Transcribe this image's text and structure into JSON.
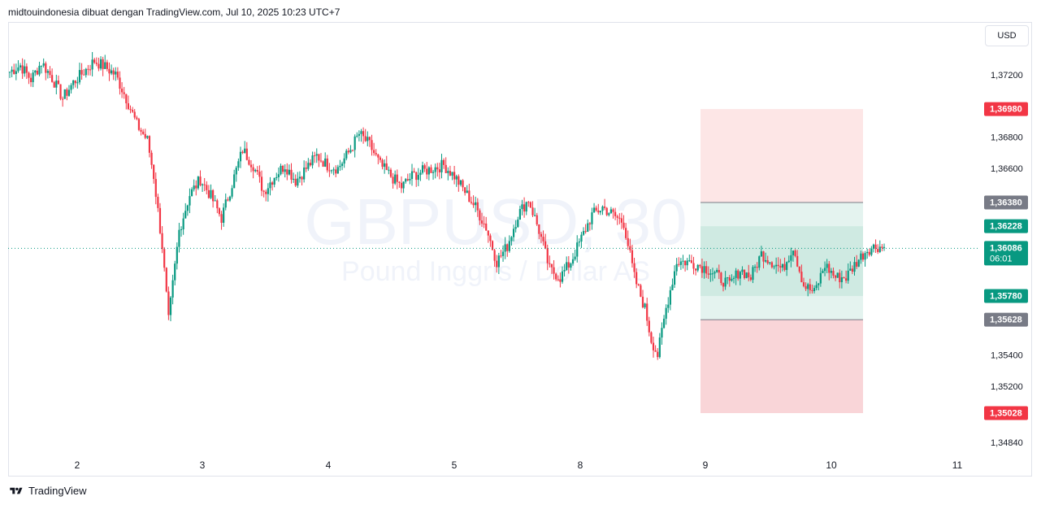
{
  "header": {
    "attribution": "midtouindonesia dibuat dengan TradingView.com, Jul 10, 2025 10:23 UTC+7"
  },
  "currency_button": "USD",
  "footer": {
    "brand": "TradingView"
  },
  "watermark": {
    "symbol": "GBPUSD, 30",
    "description": "Pound Inggris / Dollar AS"
  },
  "colors": {
    "up": "#089981",
    "down": "#f23645",
    "grid": "#e0e3eb",
    "stop_zone": "#fde6e6",
    "target_zone": "#f9d5d8",
    "entry_zone": "#e4f3ef",
    "entry_zone_dark": "#cfeae2",
    "label_red": "#f23645",
    "label_green": "#089981",
    "label_gray": "#787b86"
  },
  "chart_data": {
    "type": "candlestick",
    "symbol": "GBPUSD",
    "timeframe": "30",
    "x_tick_labels": [
      "2",
      "3",
      "4",
      "5",
      "8",
      "9",
      "10",
      "11"
    ],
    "y_axis": {
      "range": [
        1.3478,
        1.3737
      ],
      "tick_labels": [
        "1,37200",
        "1,36800",
        "1,36600",
        "1,35400",
        "1,35200",
        "1,34840"
      ]
    },
    "price_labels": [
      {
        "text": "1,36980",
        "color": "red"
      },
      {
        "text": "1,36380",
        "color": "gray"
      },
      {
        "text": "1,36228",
        "color": "green"
      },
      {
        "text": "1,36086",
        "subtext": "06:01",
        "color": "green"
      },
      {
        "text": "1,35780",
        "color": "green"
      },
      {
        "text": "1,35628",
        "color": "gray"
      },
      {
        "text": "1,35028",
        "color": "red"
      }
    ],
    "current_price": 1.36086,
    "countdown": "06:01",
    "position_tool": {
      "upper_stop": 1.3698,
      "upper_entry": 1.3638,
      "range_top": 1.36228,
      "range_bottom": 1.3578,
      "lower_entry": 1.35628,
      "lower_stop": 1.35028
    },
    "close_path": [
      [
        0,
        1.3722
      ],
      [
        5,
        1.3726
      ],
      [
        10,
        1.3717
      ],
      [
        15,
        1.3728
      ],
      [
        20,
        1.3718
      ],
      [
        25,
        1.3705
      ],
      [
        30,
        1.3715
      ],
      [
        35,
        1.3722
      ],
      [
        40,
        1.3729
      ],
      [
        45,
        1.3725
      ],
      [
        50,
        1.372
      ],
      [
        55,
        1.3705
      ],
      [
        60,
        1.3688
      ],
      [
        65,
        1.3678
      ],
      [
        68,
        1.3655
      ],
      [
        72,
        1.361
      ],
      [
        75,
        1.3562
      ],
      [
        80,
        1.362
      ],
      [
        85,
        1.3643
      ],
      [
        90,
        1.3653
      ],
      [
        95,
        1.3642
      ],
      [
        100,
        1.3628
      ],
      [
        105,
        1.365
      ],
      [
        110,
        1.3672
      ],
      [
        115,
        1.3662
      ],
      [
        120,
        1.3645
      ],
      [
        125,
        1.3655
      ],
      [
        130,
        1.3662
      ],
      [
        135,
        1.3652
      ],
      [
        140,
        1.366
      ],
      [
        145,
        1.3668
      ],
      [
        150,
        1.3662
      ],
      [
        155,
        1.366
      ],
      [
        160,
        1.367
      ],
      [
        165,
        1.3682
      ],
      [
        170,
        1.3675
      ],
      [
        175,
        1.3662
      ],
      [
        180,
        1.3655
      ],
      [
        185,
        1.3648
      ],
      [
        190,
        1.3655
      ],
      [
        195,
        1.3658
      ],
      [
        200,
        1.366
      ],
      [
        205,
        1.3662
      ],
      [
        210,
        1.3655
      ],
      [
        215,
        1.3645
      ],
      [
        220,
        1.3635
      ],
      [
        225,
        1.3622
      ],
      [
        230,
        1.36
      ],
      [
        235,
        1.361
      ],
      [
        240,
        1.363
      ],
      [
        245,
        1.364
      ],
      [
        250,
        1.362
      ],
      [
        255,
        1.3595
      ],
      [
        260,
        1.359
      ],
      [
        265,
        1.36
      ],
      [
        270,
        1.3615
      ],
      [
        275,
        1.363
      ],
      [
        280,
        1.3635
      ],
      [
        285,
        1.363
      ],
      [
        290,
        1.3625
      ],
      [
        295,
        1.359
      ],
      [
        300,
        1.357
      ],
      [
        303,
        1.355
      ],
      [
        306,
        1.354
      ],
      [
        310,
        1.357
      ],
      [
        315,
        1.36
      ],
      [
        320,
        1.36
      ],
      [
        325,
        1.3598
      ],
      [
        330,
        1.3595
      ],
      [
        335,
        1.359
      ],
      [
        340,
        1.3585
      ],
      [
        345,
        1.3595
      ],
      [
        350,
        1.359
      ],
      [
        355,
        1.3605
      ],
      [
        360,
        1.36
      ],
      [
        365,
        1.3595
      ],
      [
        370,
        1.361
      ],
      [
        375,
        1.3585
      ],
      [
        380,
        1.358
      ],
      [
        385,
        1.3598
      ],
      [
        390,
        1.359
      ],
      [
        395,
        1.359
      ],
      [
        400,
        1.36
      ],
      [
        405,
        1.3608
      ],
      [
        410,
        1.361
      ],
      [
        413,
        1.3609
      ]
    ]
  }
}
